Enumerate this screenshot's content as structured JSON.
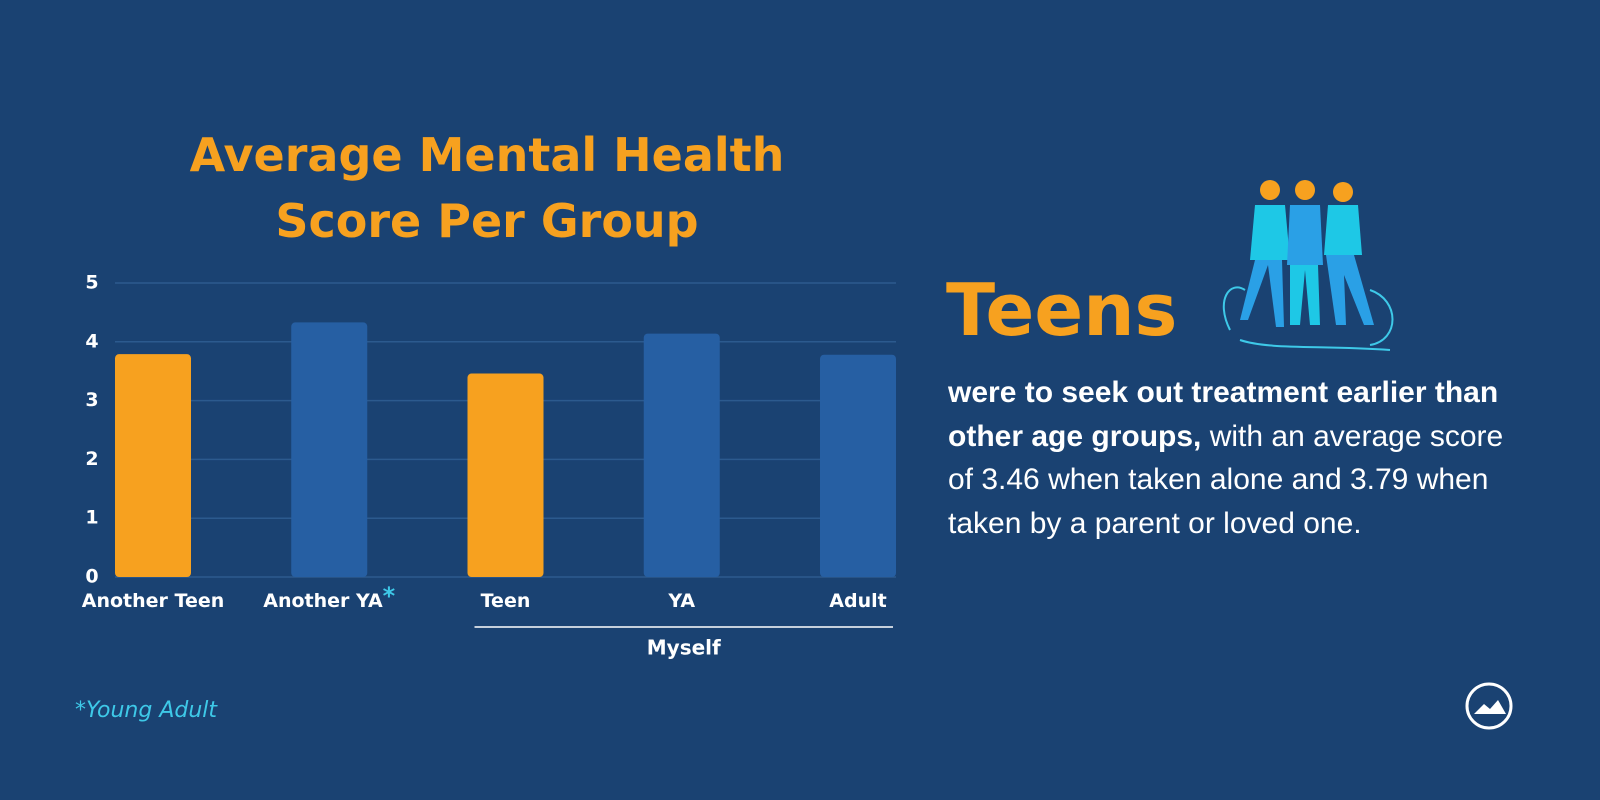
{
  "chart_data": {
    "type": "bar",
    "title": "Average Mental Health Score Per Group",
    "categories": [
      "Another Teen",
      "Another YA",
      "Teen",
      "YA",
      "Adult"
    ],
    "values": [
      3.79,
      4.33,
      3.46,
      4.14,
      3.78
    ],
    "colors": [
      "#f7a11f",
      "#265fa3",
      "#f7a11f",
      "#265fa3",
      "#265fa3"
    ],
    "ylim": [
      0,
      5
    ],
    "yticks": [
      0,
      1,
      2,
      3,
      4,
      5
    ],
    "grid": true,
    "footnote_marker": "*",
    "x_group_label": "Myself",
    "footnote": "*Young Adult"
  },
  "side_text": {
    "headline": "Teens",
    "body_bold": "were to seek out treatment earlier than other age groups,",
    "body": "with an average score of 3.46 when taken alone and 3.79 when taken by a parent or loved one."
  }
}
